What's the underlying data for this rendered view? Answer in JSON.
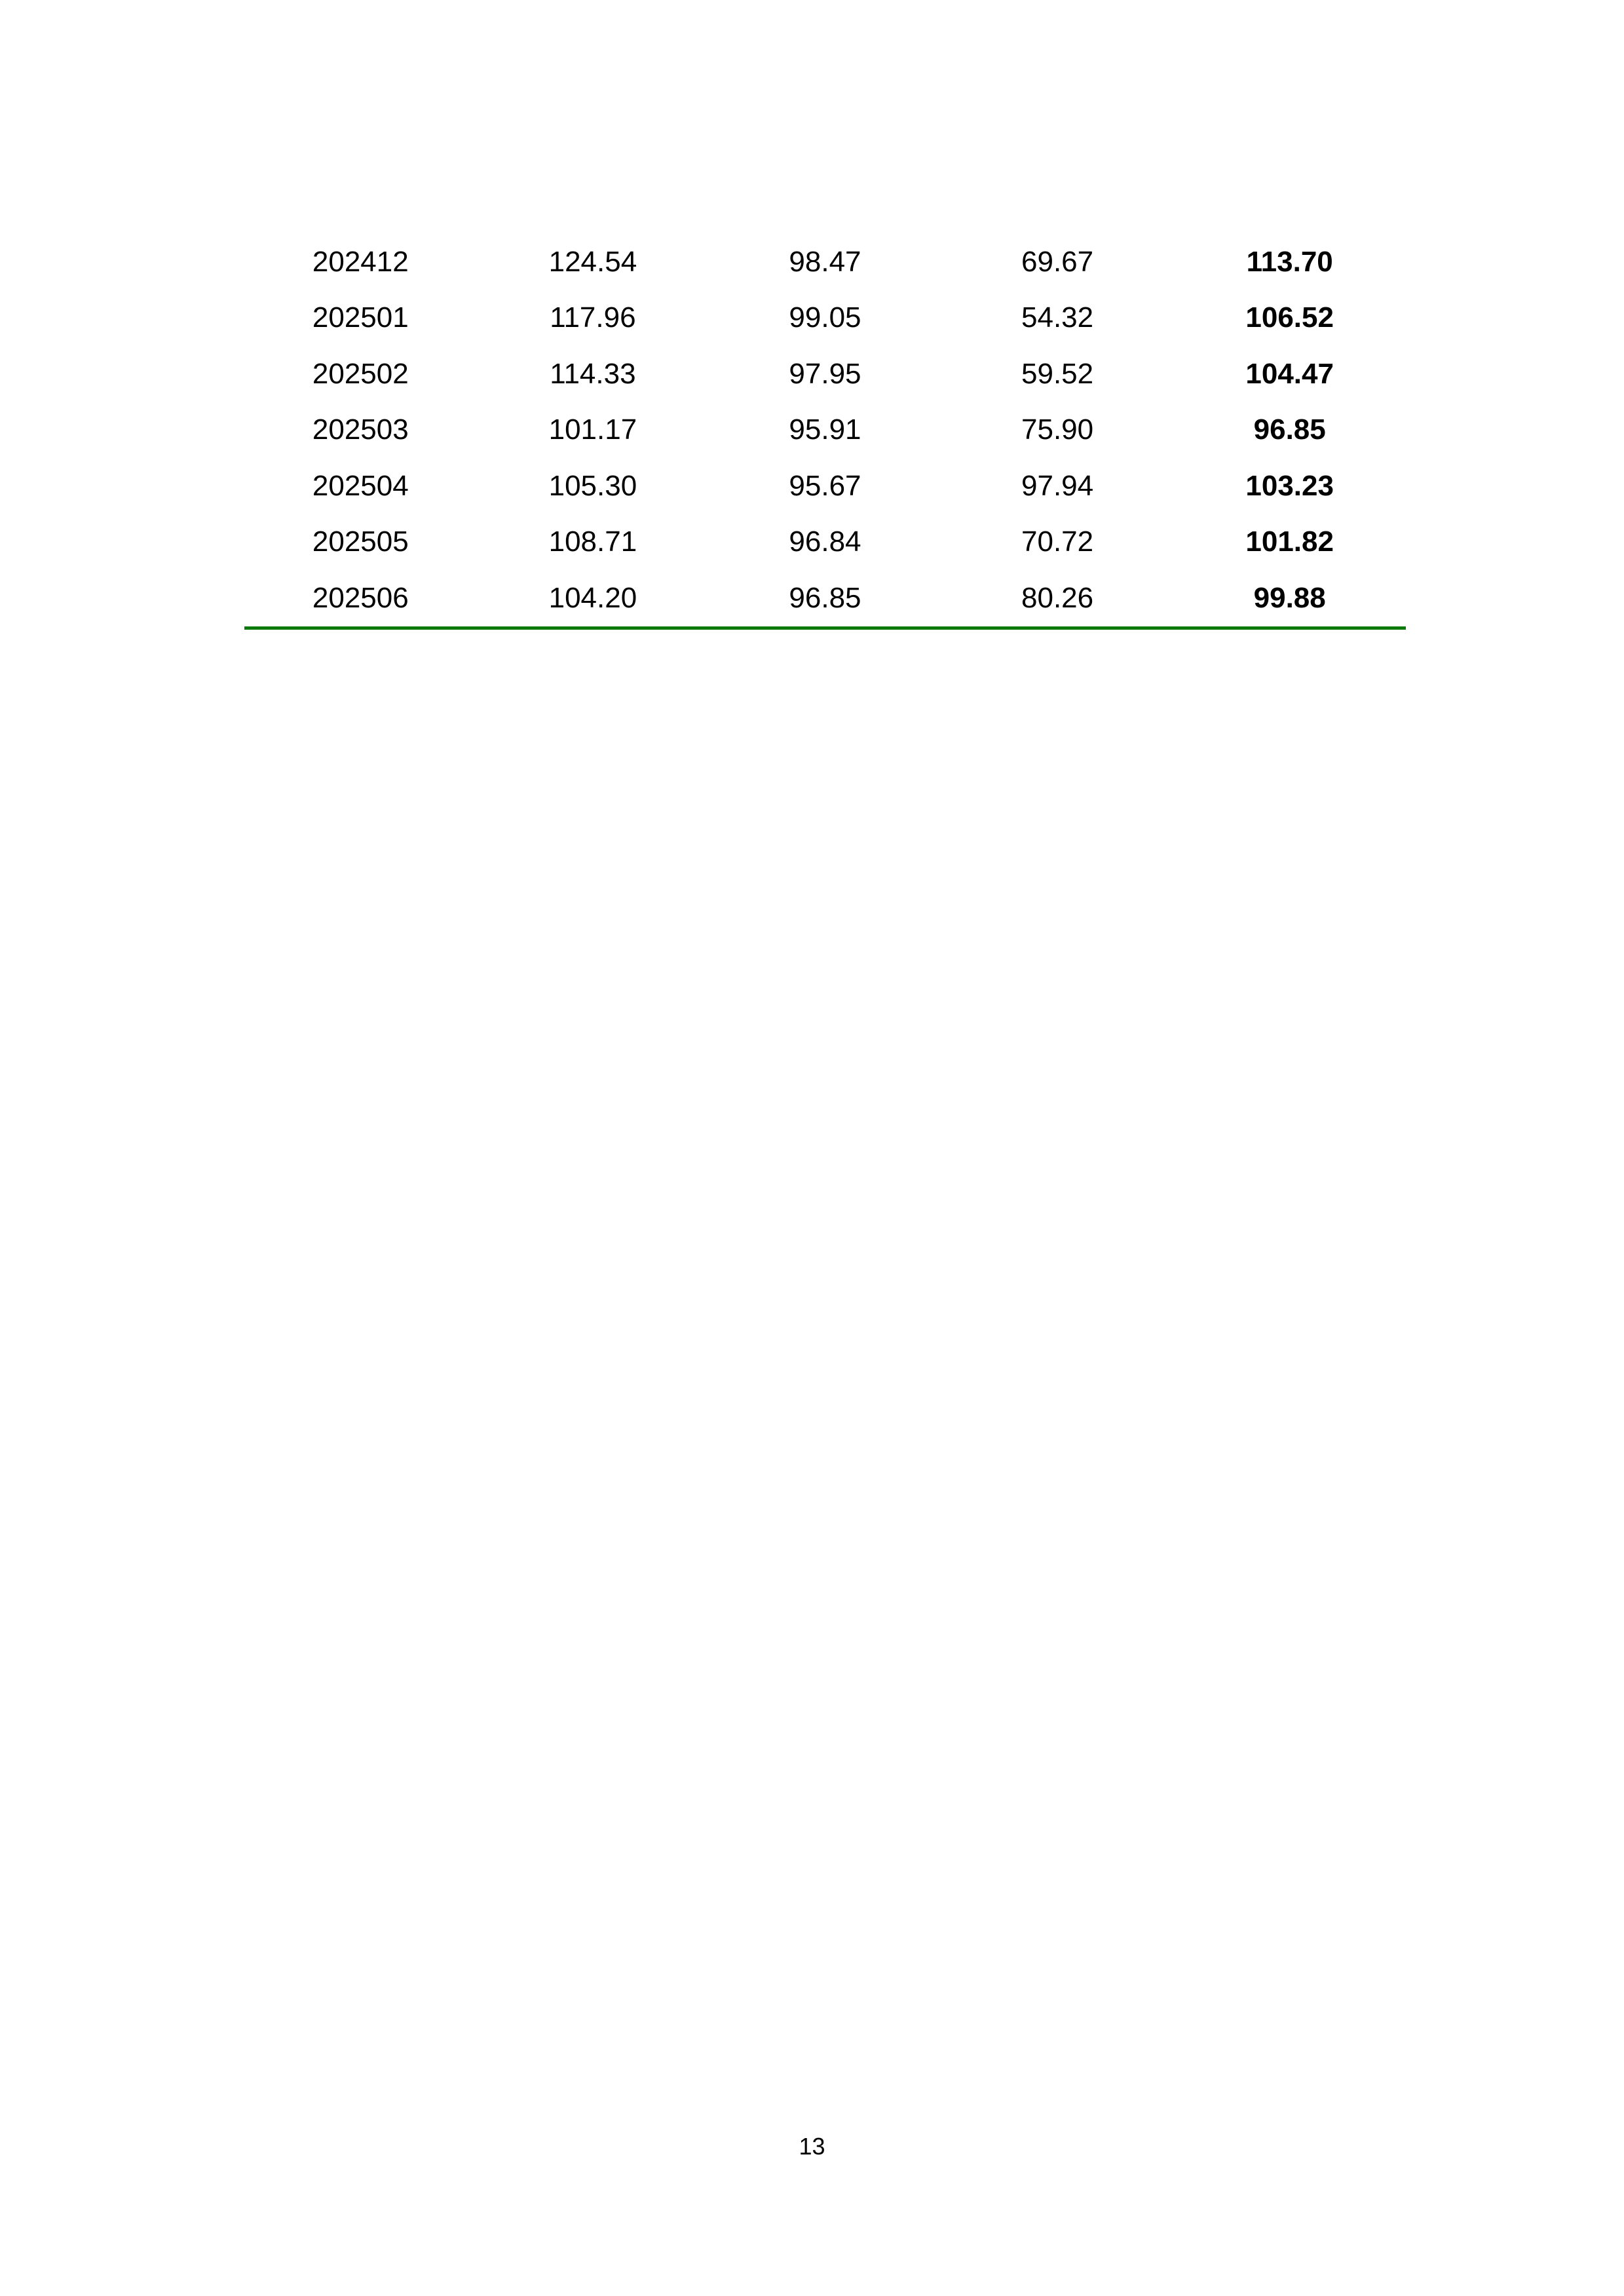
{
  "table": {
    "rows": [
      [
        "202412",
        "124.54",
        "98.47",
        "69.67",
        "113.70"
      ],
      [
        "202501",
        "117.96",
        "99.05",
        "54.32",
        "106.52"
      ],
      [
        "202502",
        "114.33",
        "97.95",
        "59.52",
        "104.47"
      ],
      [
        "202503",
        "101.17",
        "95.91",
        "75.90",
        "96.85"
      ],
      [
        "202504",
        "105.30",
        "95.67",
        "97.94",
        "103.23"
      ],
      [
        "202505",
        "108.71",
        "96.84",
        "70.72",
        "101.82"
      ],
      [
        "202506",
        "104.20",
        "96.85",
        "80.26",
        "99.88"
      ]
    ],
    "bold_last_column": true,
    "rule_color": "#0a7a0a"
  },
  "page_number": "13"
}
